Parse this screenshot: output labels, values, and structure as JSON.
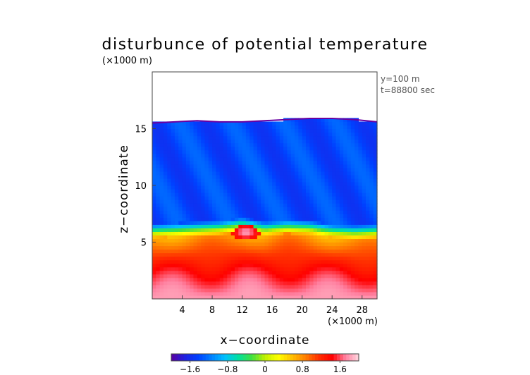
{
  "chart_data": {
    "type": "heatmap",
    "title": "disturbunce of potential temperature",
    "scale_note": "(×1000 m)",
    "xlabel": "x−coordinate",
    "ylabel": "z−coordinate",
    "x_unit_note": "(×1000 m)",
    "info": [
      "y=100 m",
      "t=88800 sec"
    ],
    "xlim": [
      0,
      30
    ],
    "ylim": [
      0,
      20
    ],
    "x_ticks": [
      4,
      8,
      12,
      16,
      20,
      24,
      28
    ],
    "y_ticks": [
      5,
      10,
      15
    ],
    "colorbar": {
      "range": [
        -2.0,
        2.0
      ],
      "tick_values": [
        -1.6,
        -0.8,
        0,
        0.8,
        1.6
      ],
      "tick_labels": [
        "−1.6",
        "−0.8",
        "0",
        "0.8",
        "1.6"
      ],
      "colors": [
        "#5a00a0",
        "#2020e0",
        "#0040ff",
        "#0080ff",
        "#00c0ff",
        "#00e0a0",
        "#40e040",
        "#c0f000",
        "#ffff00",
        "#ffc000",
        "#ff8000",
        "#ff3000",
        "#ff0000",
        "#ff80a0",
        "#ffd8e0"
      ]
    },
    "field": {
      "description_levels": "approximate field sampled from figure",
      "top_of_data_km": [
        15.5,
        15.6,
        15.7,
        15.6,
        15.6,
        15.7,
        15.8,
        15.9,
        15.9,
        15.8,
        15.6
      ],
      "top_x_km": [
        0,
        3,
        6,
        9,
        12,
        15,
        18,
        21,
        24,
        27,
        30
      ],
      "upper_value": -1.4,
      "interface_z_km": [
        6.0,
        6.1,
        6.2,
        6.3,
        6.6,
        6.2,
        6.4,
        6.3,
        6.0,
        5.9,
        6.0
      ],
      "interface_x_km": [
        0,
        3,
        6,
        9,
        12,
        15,
        18,
        21,
        24,
        27,
        30
      ],
      "lower_bottom_value": 1.8,
      "lower_top_value": 0.7,
      "blob": {
        "x": 12.5,
        "z": 5.9,
        "value": 1.9
      }
    }
  }
}
